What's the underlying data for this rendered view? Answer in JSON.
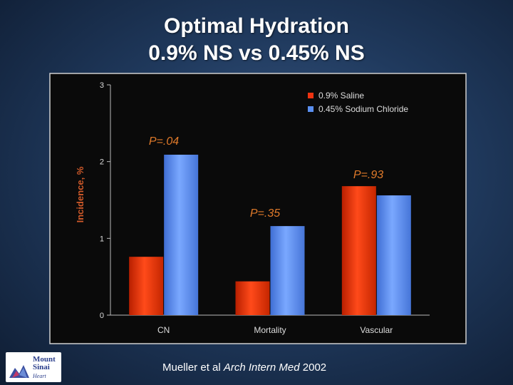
{
  "title": {
    "line1": "Optimal Hydration",
    "line2": "0.9% NS vs 0.45% NS"
  },
  "citation": {
    "author": "Mueller et al",
    "journal": "Arch Intern Med",
    "year": "2002"
  },
  "logo": {
    "line1": "Mount",
    "line2": "Sinai",
    "line3": "Heart"
  },
  "colors": {
    "saline": "#ee3311",
    "sodium_chloride": "#5a8ff0"
  },
  "chart_data": {
    "type": "bar",
    "categories": [
      "CN",
      "Mortality",
      "Vascular"
    ],
    "series": [
      {
        "name": "0.9% Saline",
        "values": [
          0.76,
          0.44,
          1.68
        ]
      },
      {
        "name": "0.45% Sodium Chloride",
        "values": [
          2.09,
          1.16,
          1.56
        ]
      }
    ],
    "ylabel": "Incidence, %",
    "xlabel": "",
    "ylim": [
      0,
      3
    ],
    "yticks": [
      "0",
      "1",
      "2",
      "3"
    ],
    "annotations": [
      "P=.04",
      "P=.35",
      "P=.93"
    ],
    "legend": "top-right"
  }
}
